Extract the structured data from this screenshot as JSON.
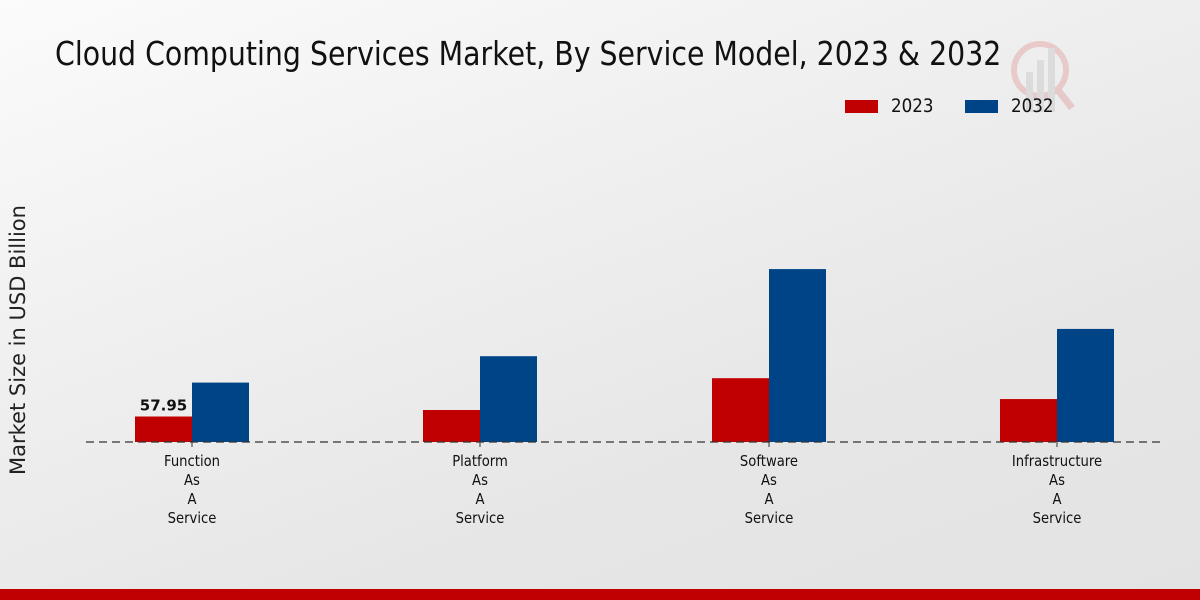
{
  "chart_data": {
    "type": "bar",
    "title": "Cloud Computing Services Market, By Service Model, 2023 & 2032",
    "xlabel": "",
    "ylabel": "Market Size in USD Billion",
    "categories": [
      [
        "Function",
        "As",
        "A",
        "Service"
      ],
      [
        "Platform",
        "As",
        "A",
        "Service"
      ],
      [
        "Software",
        "As",
        "A",
        "Service"
      ],
      [
        "Infrastructure",
        "As",
        "A",
        "Service"
      ]
    ],
    "series": [
      {
        "name": "2023",
        "color": "#c00000",
        "values": [
          57.95,
          72.7,
          145.0,
          97.6
        ]
      },
      {
        "name": "2032",
        "color": "#004488",
        "values": [
          135.0,
          195.0,
          393.0,
          257.0
        ]
      }
    ],
    "data_labels": [
      {
        "series": 0,
        "index": 0,
        "text": "57.95"
      }
    ],
    "ylim": [
      0,
      500
    ],
    "grid": false,
    "baseline": "dashed",
    "legend": "top-right"
  },
  "footer_band_color": "#c00000"
}
